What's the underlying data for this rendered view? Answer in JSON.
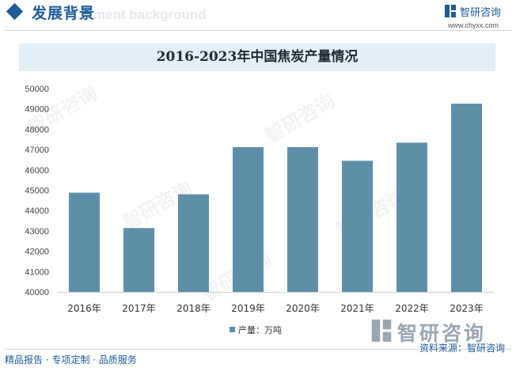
{
  "header": {
    "title": "发展背景",
    "subtitle": "ment background"
  },
  "brand": {
    "name": "智研咨询",
    "url": "www.chyxx.com",
    "logo_icon": "zhiyan-logo-icon",
    "watermark_text": "智研咨询"
  },
  "chart_data": {
    "type": "bar",
    "title": "2016-2023年中国焦炭产量情况",
    "categories": [
      "2016年",
      "2017年",
      "2018年",
      "2019年",
      "2020年",
      "2021年",
      "2022年",
      "2023年"
    ],
    "series": [
      {
        "name": "产量：万吨",
        "values": [
          44880,
          43140,
          44800,
          47120,
          47120,
          46450,
          47340,
          49260
        ]
      }
    ],
    "ylim": [
      40000,
      50000
    ],
    "yticks": [
      40000,
      41000,
      42000,
      43000,
      44000,
      45000,
      46000,
      47000,
      48000,
      49000,
      50000
    ],
    "grid": false,
    "legend_position": "bottom",
    "colors": {
      "bar": "#5f8fa8"
    }
  },
  "footer": {
    "left": "精品报告 · 专项定制 · 品质服务",
    "right": "资料来源：智研咨询"
  },
  "colors": {
    "accent": "#1f5a96",
    "title_band": "#e3eef7",
    "bar": "#5f8fa8"
  }
}
